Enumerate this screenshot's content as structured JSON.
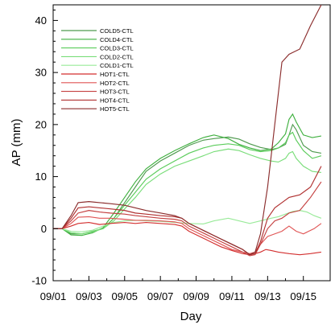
{
  "chart_data": {
    "type": "line",
    "title": "",
    "xlabel": "Day",
    "ylabel": "AP (mm)",
    "xlim": [
      "09/01",
      "09/16"
    ],
    "ylim": [
      -10,
      43
    ],
    "grid": false,
    "legend": "top-left",
    "x_tick_labels": [
      "09/01",
      "09/03",
      "09/05",
      "09/07",
      "09/09",
      "09/11",
      "09/13",
      "09/15"
    ],
    "y_ticks": [
      -10,
      0,
      10,
      20,
      30,
      40
    ],
    "series": [
      {
        "name": "COLD5-CTL",
        "color": "#4f9a4f",
        "points": [
          [
            0,
            0
          ],
          [
            0.5,
            0
          ],
          [
            1.0,
            -1
          ],
          [
            1.6,
            -1
          ],
          [
            2.2,
            -0.5
          ],
          [
            2.8,
            0
          ],
          [
            3.4,
            2
          ],
          [
            4.0,
            5
          ],
          [
            4.6,
            8
          ],
          [
            5.2,
            11
          ],
          [
            6.0,
            13
          ],
          [
            6.8,
            14.5
          ],
          [
            7.6,
            16
          ],
          [
            8.4,
            17
          ],
          [
            9.0,
            17.3
          ],
          [
            9.8,
            17.6
          ],
          [
            10.4,
            17.2
          ],
          [
            11.0,
            16.3
          ],
          [
            11.6,
            15.6
          ],
          [
            12.2,
            15.2
          ],
          [
            12.6,
            15.5
          ],
          [
            13.0,
            16.2
          ],
          [
            13.2,
            18
          ],
          [
            13.4,
            20
          ],
          [
            13.6,
            19
          ],
          [
            14.0,
            16
          ],
          [
            14.5,
            14.8
          ],
          [
            15.0,
            14.5
          ]
        ]
      },
      {
        "name": "COLD4-CTL",
        "color": "#3fb03f",
        "points": [
          [
            0,
            0
          ],
          [
            0.5,
            0
          ],
          [
            1.0,
            -1.2
          ],
          [
            1.6,
            -1.3
          ],
          [
            2.2,
            -0.8
          ],
          [
            2.8,
            0.2
          ],
          [
            3.4,
            3
          ],
          [
            4.0,
            6
          ],
          [
            4.6,
            9
          ],
          [
            5.2,
            11.5
          ],
          [
            6.0,
            13.5
          ],
          [
            6.8,
            15
          ],
          [
            7.6,
            16.3
          ],
          [
            8.4,
            17.5
          ],
          [
            9.0,
            18
          ],
          [
            9.8,
            17.3
          ],
          [
            10.4,
            16.2
          ],
          [
            11.0,
            15.5
          ],
          [
            11.6,
            15
          ],
          [
            12.2,
            15.3
          ],
          [
            12.6,
            16.5
          ],
          [
            13.0,
            18.2
          ],
          [
            13.2,
            21
          ],
          [
            13.4,
            22
          ],
          [
            13.6,
            20.5
          ],
          [
            14.0,
            18
          ],
          [
            14.5,
            17.5
          ],
          [
            15.0,
            17.8
          ]
        ]
      },
      {
        "name": "COLD3-CTL",
        "color": "#5bcc5b",
        "points": [
          [
            0,
            0
          ],
          [
            0.5,
            0
          ],
          [
            1.0,
            -0.8
          ],
          [
            1.6,
            -1.0
          ],
          [
            2.2,
            -0.5
          ],
          [
            2.8,
            0
          ],
          [
            3.4,
            2
          ],
          [
            4.0,
            4.5
          ],
          [
            4.6,
            7
          ],
          [
            5.2,
            9.5
          ],
          [
            6.0,
            11.5
          ],
          [
            6.8,
            13
          ],
          [
            7.6,
            14.5
          ],
          [
            8.4,
            15.5
          ],
          [
            9.0,
            16
          ],
          [
            9.8,
            16.3
          ],
          [
            10.4,
            16
          ],
          [
            11.0,
            15.2
          ],
          [
            11.6,
            14.8
          ],
          [
            12.2,
            15
          ],
          [
            12.6,
            15.5
          ],
          [
            13.0,
            16.5
          ],
          [
            13.2,
            18
          ],
          [
            13.4,
            18.5
          ],
          [
            13.6,
            17
          ],
          [
            14.0,
            15
          ],
          [
            14.5,
            13.5
          ],
          [
            15.0,
            14
          ]
        ]
      },
      {
        "name": "COLD2-CTL",
        "color": "#79dd79",
        "points": [
          [
            0,
            0
          ],
          [
            0.5,
            0
          ],
          [
            1.0,
            -0.8
          ],
          [
            1.6,
            -1.0
          ],
          [
            2.2,
            -0.6
          ],
          [
            2.8,
            0
          ],
          [
            3.4,
            1.5
          ],
          [
            4.0,
            3.8
          ],
          [
            4.6,
            6
          ],
          [
            5.2,
            8.5
          ],
          [
            6.0,
            10.5
          ],
          [
            6.8,
            12
          ],
          [
            7.6,
            13
          ],
          [
            8.4,
            14
          ],
          [
            9.0,
            14.8
          ],
          [
            9.8,
            15.3
          ],
          [
            10.4,
            15
          ],
          [
            11.0,
            14.2
          ],
          [
            11.6,
            13.5
          ],
          [
            12.2,
            13
          ],
          [
            12.6,
            12.8
          ],
          [
            13.0,
            13.5
          ],
          [
            13.2,
            14.5
          ],
          [
            13.4,
            14.8
          ],
          [
            13.6,
            13.5
          ],
          [
            14.0,
            12
          ],
          [
            14.5,
            11
          ],
          [
            15.0,
            10.8
          ]
        ]
      },
      {
        "name": "COLD1-CTL",
        "color": "#99ea99",
        "points": [
          [
            0,
            0
          ],
          [
            0.5,
            0
          ],
          [
            1.0,
            -0.5
          ],
          [
            1.6,
            -0.6
          ],
          [
            2.2,
            -0.3
          ],
          [
            2.8,
            0.5
          ],
          [
            3.4,
            1.2
          ],
          [
            4.0,
            1.5
          ],
          [
            4.6,
            1.6
          ],
          [
            5.2,
            1.5
          ],
          [
            6.0,
            1.4
          ],
          [
            6.8,
            1.2
          ],
          [
            7.6,
            1.0
          ],
          [
            8.4,
            0.9
          ],
          [
            9.0,
            1.5
          ],
          [
            9.8,
            2.0
          ],
          [
            10.4,
            1.5
          ],
          [
            11.0,
            1.0
          ],
          [
            11.6,
            1.5
          ],
          [
            12.2,
            2.0
          ],
          [
            12.6,
            2.3
          ],
          [
            13.0,
            2.8
          ],
          [
            13.4,
            3.3
          ],
          [
            13.8,
            3.5
          ],
          [
            14.2,
            3.2
          ],
          [
            14.6,
            2.5
          ],
          [
            15.0,
            2.0
          ]
        ]
      },
      {
        "name": "HOT1-CTL",
        "color": "#d32f2f",
        "points": [
          [
            0,
            0
          ],
          [
            0.5,
            0
          ],
          [
            1.0,
            0.5
          ],
          [
            1.4,
            1.0
          ],
          [
            2.0,
            1.2
          ],
          [
            2.6,
            0.8
          ],
          [
            3.2,
            1.0
          ],
          [
            4.0,
            1.2
          ],
          [
            4.6,
            1.0
          ],
          [
            5.2,
            1.2
          ],
          [
            6.0,
            1.0
          ],
          [
            6.8,
            0.8
          ],
          [
            7.2,
            0.5
          ],
          [
            7.6,
            -0.5
          ],
          [
            8.2,
            -1.5
          ],
          [
            8.8,
            -2.5
          ],
          [
            9.4,
            -3.5
          ],
          [
            10.0,
            -4.2
          ],
          [
            10.6,
            -4.8
          ],
          [
            11.0,
            -5.0
          ],
          [
            11.3,
            -4.8
          ],
          [
            11.6,
            -4.5
          ],
          [
            11.9,
            -4.0
          ],
          [
            12.2,
            -4.2
          ],
          [
            12.6,
            -4.5
          ],
          [
            13.2,
            -4.8
          ],
          [
            13.8,
            -5.0
          ],
          [
            14.4,
            -4.8
          ],
          [
            15.0,
            -4.5
          ]
        ]
      },
      {
        "name": "HOT2-CTL",
        "color": "#e05555",
        "points": [
          [
            0,
            0
          ],
          [
            0.5,
            0
          ],
          [
            1.0,
            1.0
          ],
          [
            1.4,
            2.2
          ],
          [
            2.0,
            2.3
          ],
          [
            2.6,
            2.0
          ],
          [
            3.2,
            2.0
          ],
          [
            4.0,
            1.8
          ],
          [
            4.6,
            1.6
          ],
          [
            5.2,
            1.6
          ],
          [
            6.0,
            1.5
          ],
          [
            6.8,
            1.3
          ],
          [
            7.2,
            1.0
          ],
          [
            7.6,
            0
          ],
          [
            8.2,
            -1.0
          ],
          [
            8.8,
            -2.0
          ],
          [
            9.4,
            -3.0
          ],
          [
            10.0,
            -4.0
          ],
          [
            10.6,
            -4.5
          ],
          [
            11.0,
            -4.8
          ],
          [
            11.3,
            -4.5
          ],
          [
            11.6,
            -3.0
          ],
          [
            12.0,
            -1.5
          ],
          [
            12.4,
            -1.0
          ],
          [
            12.8,
            -0.5
          ],
          [
            13.2,
            0.5
          ],
          [
            13.6,
            -0.5
          ],
          [
            14.0,
            -1.0
          ],
          [
            14.6,
            0
          ],
          [
            15.0,
            1.0
          ]
        ]
      },
      {
        "name": "HOT3-CTL",
        "color": "#c44040",
        "points": [
          [
            0,
            0
          ],
          [
            0.5,
            0
          ],
          [
            1.0,
            1.5
          ],
          [
            1.4,
            3.0
          ],
          [
            2.0,
            3.5
          ],
          [
            2.6,
            3.2
          ],
          [
            3.2,
            3.0
          ],
          [
            4.0,
            2.8
          ],
          [
            4.6,
            2.5
          ],
          [
            5.2,
            2.3
          ],
          [
            6.0,
            2.0
          ],
          [
            6.8,
            1.8
          ],
          [
            7.2,
            1.5
          ],
          [
            7.6,
            0.5
          ],
          [
            8.2,
            -0.5
          ],
          [
            8.8,
            -1.5
          ],
          [
            9.4,
            -2.5
          ],
          [
            10.0,
            -3.5
          ],
          [
            10.6,
            -4.5
          ],
          [
            11.0,
            -5.2
          ],
          [
            11.3,
            -5.0
          ],
          [
            11.6,
            -3.0
          ],
          [
            12.0,
            0
          ],
          [
            12.4,
            1.5
          ],
          [
            12.8,
            2.0
          ],
          [
            13.2,
            3.0
          ],
          [
            13.8,
            3.5
          ],
          [
            14.4,
            6
          ],
          [
            15.0,
            9
          ]
        ]
      },
      {
        "name": "HOT4-CTL",
        "color": "#b03030",
        "points": [
          [
            0,
            0
          ],
          [
            0.5,
            0
          ],
          [
            1.0,
            2.0
          ],
          [
            1.4,
            4.0
          ],
          [
            2.0,
            4.2
          ],
          [
            2.6,
            4.0
          ],
          [
            3.2,
            3.8
          ],
          [
            4.0,
            3.5
          ],
          [
            4.6,
            3.0
          ],
          [
            5.2,
            2.8
          ],
          [
            6.0,
            2.5
          ],
          [
            6.8,
            2.3
          ],
          [
            7.2,
            2.0
          ],
          [
            7.6,
            1.0
          ],
          [
            8.2,
            0
          ],
          [
            8.8,
            -1.0
          ],
          [
            9.4,
            -2.0
          ],
          [
            10.0,
            -3.0
          ],
          [
            10.6,
            -4.0
          ],
          [
            11.0,
            -5.0
          ],
          [
            11.3,
            -4.8
          ],
          [
            11.6,
            -2.5
          ],
          [
            12.0,
            2.0
          ],
          [
            12.4,
            4.0
          ],
          [
            12.8,
            5.0
          ],
          [
            13.2,
            6.0
          ],
          [
            13.8,
            6.5
          ],
          [
            14.4,
            8.0
          ],
          [
            15.0,
            12
          ]
        ]
      },
      {
        "name": "HOT5-CTL",
        "color": "#8b2d2d",
        "points": [
          [
            0,
            0
          ],
          [
            0.5,
            0
          ],
          [
            1.0,
            2.5
          ],
          [
            1.4,
            5.0
          ],
          [
            2.0,
            5.2
          ],
          [
            2.6,
            5.0
          ],
          [
            3.2,
            4.8
          ],
          [
            4.0,
            4.5
          ],
          [
            4.6,
            4.0
          ],
          [
            5.2,
            3.5
          ],
          [
            6.0,
            3.0
          ],
          [
            6.8,
            2.5
          ],
          [
            7.2,
            2.0
          ],
          [
            7.6,
            1.0
          ],
          [
            8.2,
            0
          ],
          [
            8.8,
            -1.0
          ],
          [
            9.4,
            -2.0
          ],
          [
            10.0,
            -3.0
          ],
          [
            10.6,
            -4.0
          ],
          [
            11.0,
            -5.0
          ],
          [
            11.3,
            -4.5
          ],
          [
            11.6,
            -1.0
          ],
          [
            12.0,
            8
          ],
          [
            12.4,
            20
          ],
          [
            12.8,
            32
          ],
          [
            13.2,
            33.5
          ],
          [
            13.8,
            34.5
          ],
          [
            14.4,
            39
          ],
          [
            15.0,
            43
          ]
        ]
      }
    ]
  }
}
